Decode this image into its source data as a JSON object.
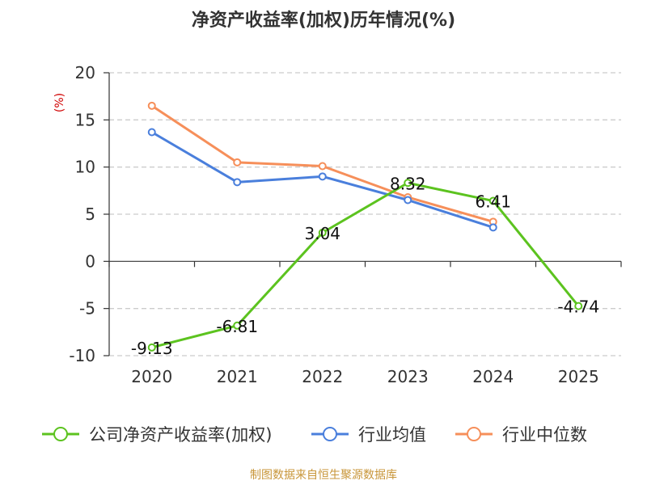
{
  "chart_data": {
    "type": "line",
    "title": "净资产收益率(加权)历年情况(%)",
    "ylabel": "(%)",
    "xlabel": "",
    "categories": [
      "2020",
      "2021",
      "2022",
      "2023",
      "2024",
      "2025"
    ],
    "yticks": [
      20,
      15,
      10,
      5,
      0,
      -5,
      -10
    ],
    "ylim": [
      -10,
      20
    ],
    "grid": true,
    "legend_position": "bottom",
    "series": [
      {
        "name": "公司净资产收益率(加权)",
        "color": "#5cc31f",
        "values": [
          -9.13,
          -6.81,
          3.04,
          8.32,
          6.41,
          -4.74
        ],
        "labels": [
          "-9.13",
          "-6.81",
          "3.04",
          "8.32",
          "6.41",
          "-4.74"
        ]
      },
      {
        "name": "行业均值",
        "color": "#4a7fdc",
        "values": [
          13.7,
          8.4,
          9.0,
          6.5,
          3.6,
          null
        ]
      },
      {
        "name": "行业中位数",
        "color": "#f68f5a",
        "values": [
          16.5,
          10.5,
          10.1,
          6.8,
          4.2,
          null
        ]
      }
    ]
  },
  "footer": "制图数据来自恒生聚源数据库",
  "colors": {
    "axis": "#333333",
    "grid": "#cccccc",
    "ylabel": "#d00000",
    "footer": "#c8963a"
  }
}
